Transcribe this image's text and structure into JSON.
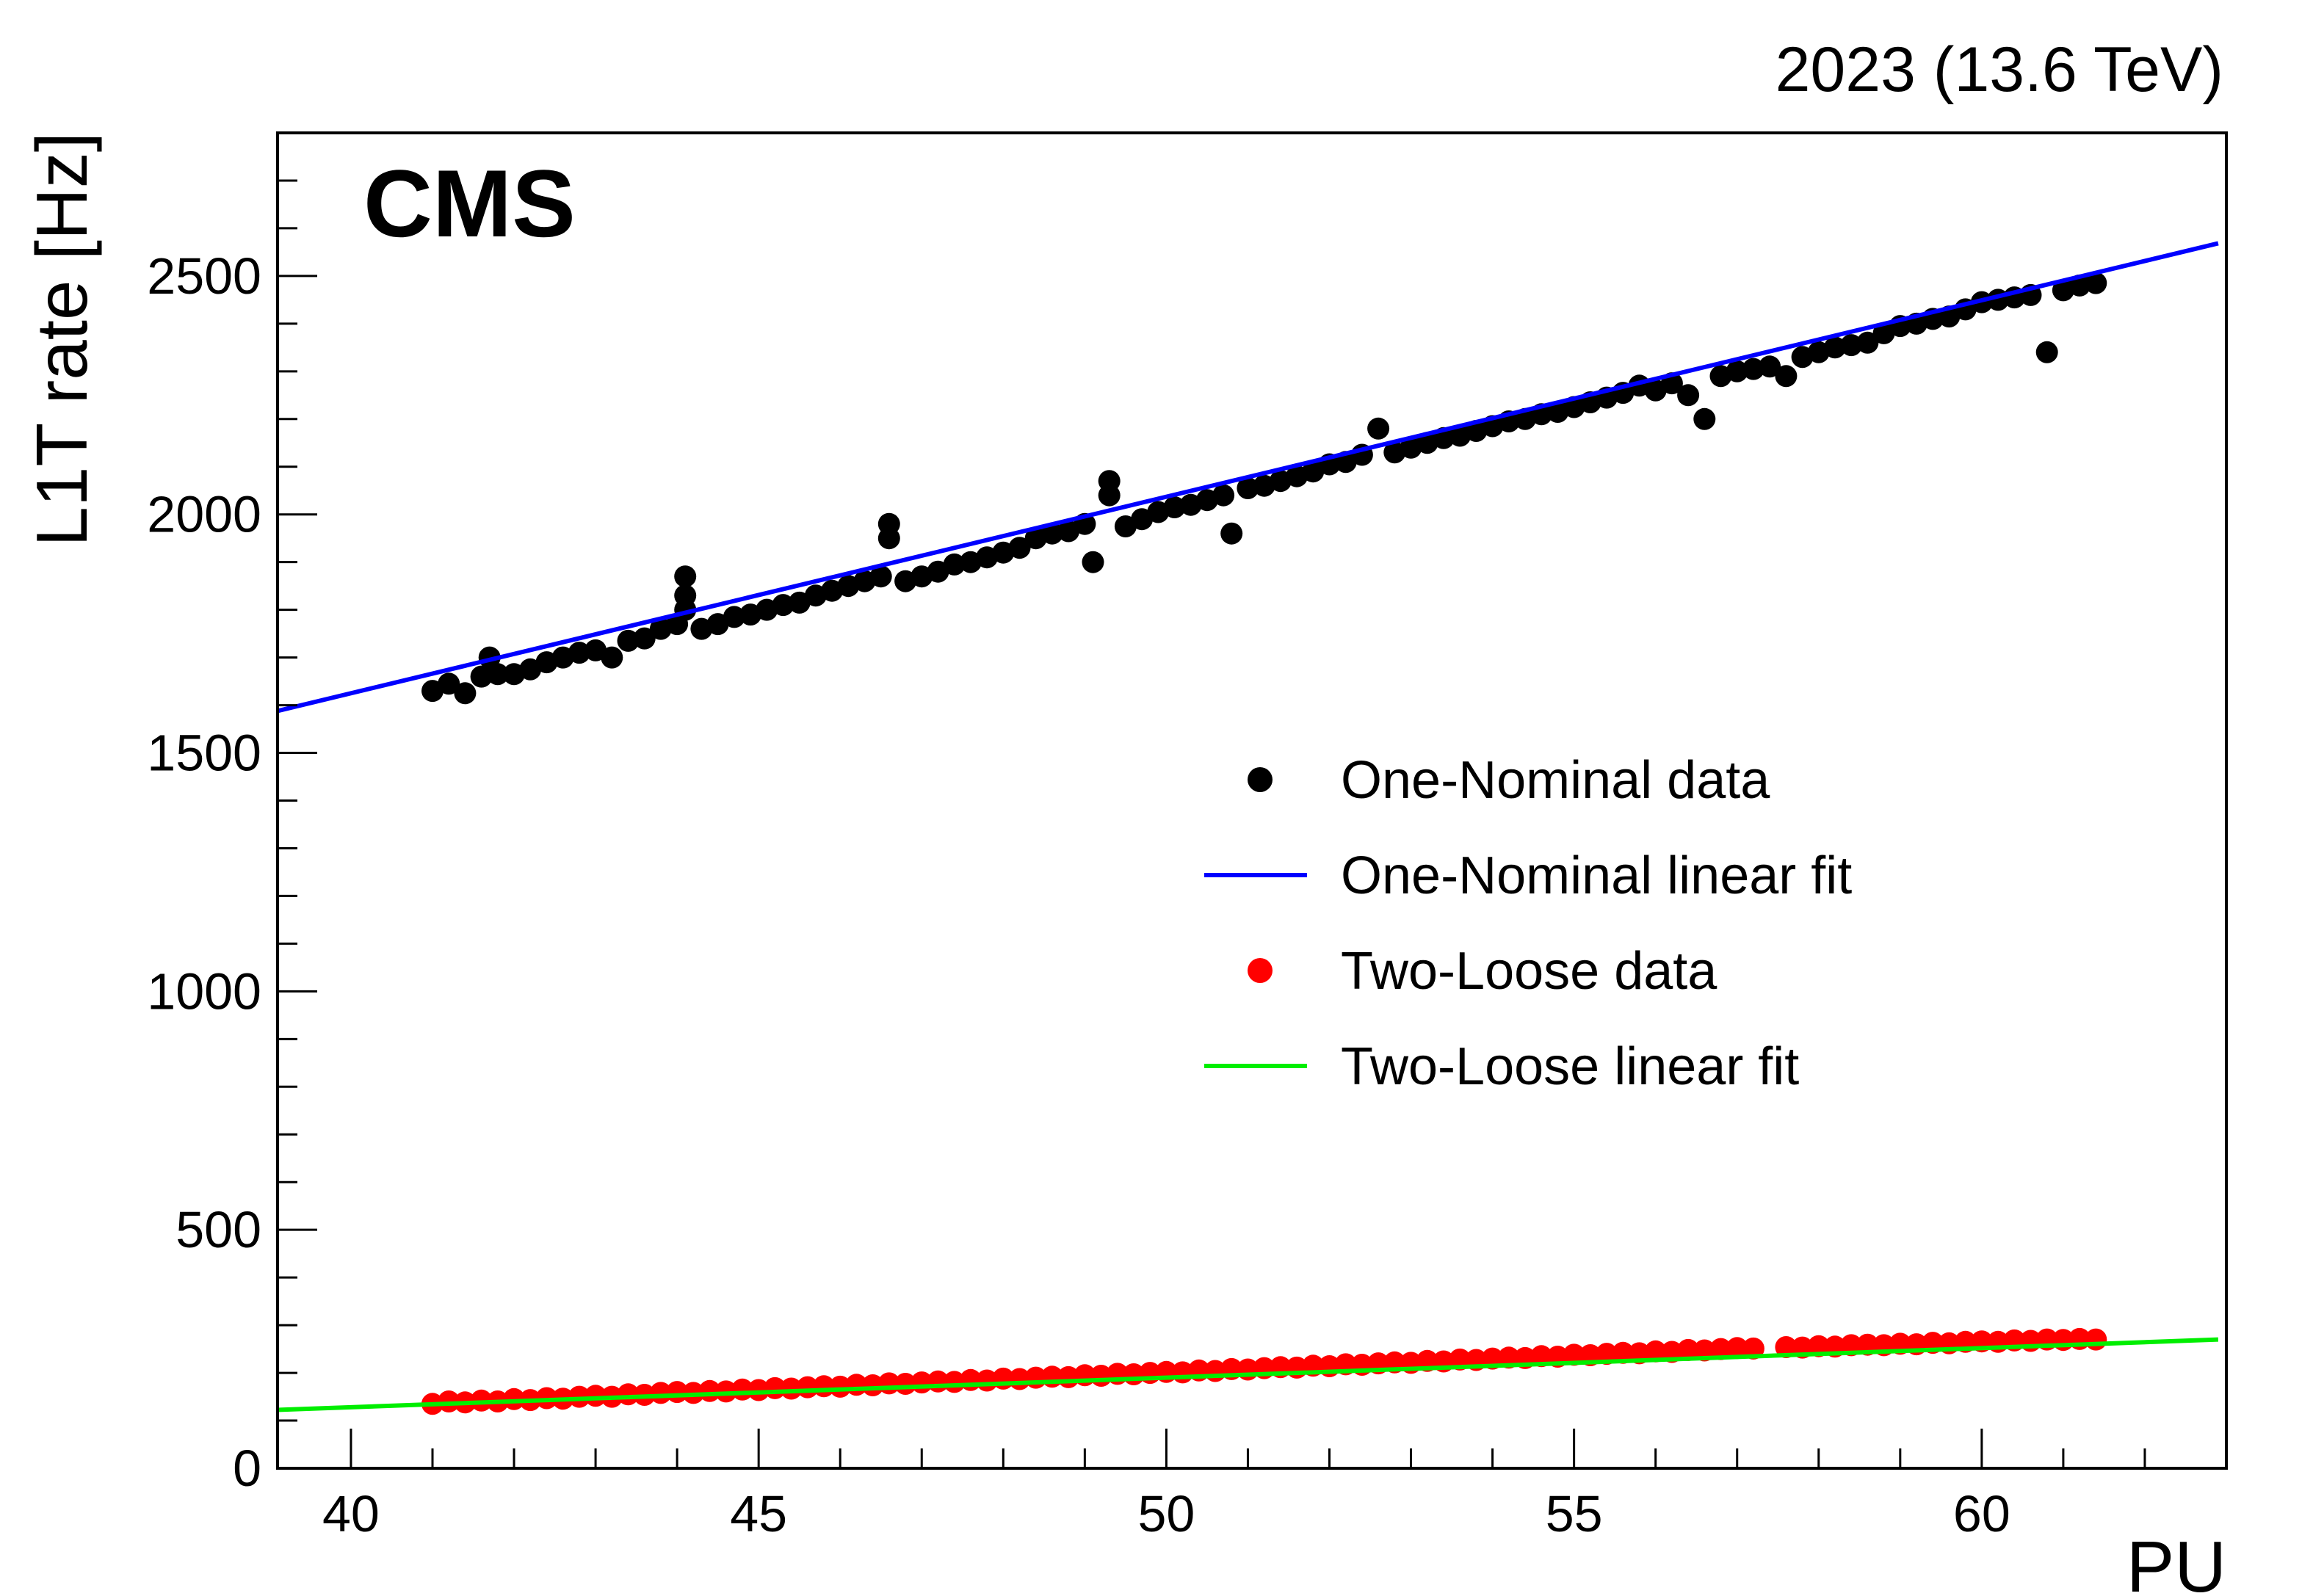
{
  "header": {
    "experiment": "CMS",
    "energy_label": "2023 (13.6 TeV)"
  },
  "chart_data": {
    "type": "scatter",
    "title": "",
    "xlabel": "PU",
    "ylabel": "L1T rate [Hz]",
    "xlim": [
      39.1,
      63.0
    ],
    "ylim": [
      0,
      2800
    ],
    "x_ticks": [
      40,
      45,
      50,
      55,
      60
    ],
    "y_ticks": [
      0,
      500,
      1000,
      1500,
      2000,
      2500
    ],
    "legend_position": "center-right",
    "series": [
      {
        "name": "One-Nominal data",
        "kind": "points",
        "color": "#000000",
        "points": [
          [
            41.0,
            1630
          ],
          [
            41.2,
            1645
          ],
          [
            41.4,
            1625
          ],
          [
            41.6,
            1660
          ],
          [
            41.7,
            1700
          ],
          [
            41.8,
            1665
          ],
          [
            42.0,
            1665
          ],
          [
            42.2,
            1675
          ],
          [
            42.4,
            1690
          ],
          [
            42.6,
            1700
          ],
          [
            42.8,
            1710
          ],
          [
            43.0,
            1715
          ],
          [
            43.2,
            1700
          ],
          [
            43.4,
            1735
          ],
          [
            43.6,
            1740
          ],
          [
            43.8,
            1760
          ],
          [
            44.0,
            1770
          ],
          [
            44.1,
            1800
          ],
          [
            44.1,
            1830
          ],
          [
            44.1,
            1870
          ],
          [
            44.3,
            1760
          ],
          [
            44.5,
            1770
          ],
          [
            44.7,
            1785
          ],
          [
            44.9,
            1790
          ],
          [
            45.1,
            1800
          ],
          [
            45.3,
            1810
          ],
          [
            45.5,
            1815
          ],
          [
            45.7,
            1830
          ],
          [
            45.9,
            1840
          ],
          [
            46.1,
            1850
          ],
          [
            46.3,
            1860
          ],
          [
            46.5,
            1870
          ],
          [
            46.6,
            1950
          ],
          [
            46.6,
            1980
          ],
          [
            46.8,
            1860
          ],
          [
            47.0,
            1870
          ],
          [
            47.2,
            1880
          ],
          [
            47.4,
            1895
          ],
          [
            47.6,
            1900
          ],
          [
            47.8,
            1910
          ],
          [
            48.0,
            1920
          ],
          [
            48.2,
            1930
          ],
          [
            48.4,
            1950
          ],
          [
            48.6,
            1960
          ],
          [
            48.8,
            1965
          ],
          [
            49.0,
            1980
          ],
          [
            49.1,
            1900
          ],
          [
            49.3,
            2040
          ],
          [
            49.3,
            2070
          ],
          [
            49.5,
            1975
          ],
          [
            49.7,
            1990
          ],
          [
            49.9,
            2005
          ],
          [
            50.1,
            2015
          ],
          [
            50.3,
            2020
          ],
          [
            50.5,
            2030
          ],
          [
            50.7,
            2040
          ],
          [
            50.8,
            1960
          ],
          [
            51.0,
            2055
          ],
          [
            51.2,
            2060
          ],
          [
            51.4,
            2070
          ],
          [
            51.6,
            2080
          ],
          [
            51.8,
            2090
          ],
          [
            52.0,
            2105
          ],
          [
            52.2,
            2110
          ],
          [
            52.4,
            2125
          ],
          [
            52.6,
            2180
          ],
          [
            52.8,
            2130
          ],
          [
            53.0,
            2140
          ],
          [
            53.2,
            2150
          ],
          [
            53.4,
            2160
          ],
          [
            53.6,
            2165
          ],
          [
            53.8,
            2175
          ],
          [
            54.0,
            2185
          ],
          [
            54.2,
            2195
          ],
          [
            54.4,
            2200
          ],
          [
            54.6,
            2210
          ],
          [
            54.8,
            2215
          ],
          [
            55.0,
            2225
          ],
          [
            55.2,
            2235
          ],
          [
            55.4,
            2245
          ],
          [
            55.6,
            2255
          ],
          [
            55.8,
            2270
          ],
          [
            56.0,
            2260
          ],
          [
            56.2,
            2275
          ],
          [
            56.4,
            2250
          ],
          [
            56.6,
            2200
          ],
          [
            56.8,
            2290
          ],
          [
            57.0,
            2300
          ],
          [
            57.2,
            2305
          ],
          [
            57.4,
            2310
          ],
          [
            57.6,
            2290
          ],
          [
            57.8,
            2330
          ],
          [
            58.0,
            2340
          ],
          [
            58.2,
            2350
          ],
          [
            58.4,
            2355
          ],
          [
            58.6,
            2360
          ],
          [
            58.8,
            2380
          ],
          [
            59.0,
            2395
          ],
          [
            59.2,
            2400
          ],
          [
            59.4,
            2410
          ],
          [
            59.6,
            2415
          ],
          [
            59.8,
            2430
          ],
          [
            60.0,
            2445
          ],
          [
            60.2,
            2450
          ],
          [
            60.4,
            2455
          ],
          [
            60.6,
            2460
          ],
          [
            60.8,
            2340
          ],
          [
            61.0,
            2470
          ],
          [
            61.2,
            2480
          ],
          [
            61.4,
            2485
          ]
        ]
      },
      {
        "name": "One-Nominal linear fit",
        "kind": "line",
        "color": "#0000ff",
        "slope": 41.2,
        "intercept": -23,
        "x_range": [
          39.1,
          62.9
        ]
      },
      {
        "name": "Two-Loose data",
        "kind": "points",
        "color": "#ff0000",
        "points": [
          [
            41.0,
            135
          ],
          [
            41.2,
            140
          ],
          [
            41.4,
            138
          ],
          [
            41.6,
            142
          ],
          [
            41.8,
            140
          ],
          [
            42.0,
            145
          ],
          [
            42.2,
            143
          ],
          [
            42.4,
            147
          ],
          [
            42.6,
            146
          ],
          [
            42.8,
            150
          ],
          [
            43.0,
            152
          ],
          [
            43.2,
            150
          ],
          [
            43.4,
            155
          ],
          [
            43.6,
            154
          ],
          [
            43.8,
            158
          ],
          [
            44.0,
            160
          ],
          [
            44.2,
            158
          ],
          [
            44.4,
            162
          ],
          [
            44.6,
            161
          ],
          [
            44.8,
            165
          ],
          [
            45.0,
            164
          ],
          [
            45.2,
            168
          ],
          [
            45.4,
            167
          ],
          [
            45.6,
            170
          ],
          [
            45.8,
            172
          ],
          [
            46.0,
            171
          ],
          [
            46.2,
            175
          ],
          [
            46.4,
            174
          ],
          [
            46.6,
            178
          ],
          [
            46.8,
            177
          ],
          [
            47.0,
            180
          ],
          [
            47.2,
            182
          ],
          [
            47.4,
            181
          ],
          [
            47.6,
            185
          ],
          [
            47.8,
            184
          ],
          [
            48.0,
            188
          ],
          [
            48.2,
            187
          ],
          [
            48.4,
            190
          ],
          [
            48.6,
            192
          ],
          [
            48.8,
            191
          ],
          [
            49.0,
            195
          ],
          [
            49.2,
            194
          ],
          [
            49.4,
            198
          ],
          [
            49.6,
            197
          ],
          [
            49.8,
            200
          ],
          [
            50.0,
            202
          ],
          [
            50.2,
            201
          ],
          [
            50.4,
            205
          ],
          [
            50.6,
            204
          ],
          [
            50.8,
            208
          ],
          [
            51.0,
            207
          ],
          [
            51.2,
            210
          ],
          [
            51.4,
            212
          ],
          [
            51.6,
            211
          ],
          [
            51.8,
            215
          ],
          [
            52.0,
            214
          ],
          [
            52.2,
            218
          ],
          [
            52.4,
            217
          ],
          [
            52.6,
            220
          ],
          [
            52.8,
            222
          ],
          [
            53.0,
            221
          ],
          [
            53.2,
            225
          ],
          [
            53.4,
            224
          ],
          [
            53.6,
            228
          ],
          [
            53.8,
            227
          ],
          [
            54.0,
            230
          ],
          [
            54.2,
            232
          ],
          [
            54.4,
            231
          ],
          [
            54.6,
            235
          ],
          [
            54.8,
            234
          ],
          [
            55.0,
            238
          ],
          [
            55.2,
            237
          ],
          [
            55.4,
            240
          ],
          [
            55.6,
            242
          ],
          [
            55.8,
            241
          ],
          [
            56.0,
            245
          ],
          [
            56.2,
            244
          ],
          [
            56.4,
            248
          ],
          [
            56.6,
            247
          ],
          [
            56.8,
            250
          ],
          [
            57.0,
            252
          ],
          [
            57.2,
            251
          ],
          [
            57.6,
            254
          ],
          [
            57.8,
            253
          ],
          [
            58.0,
            256
          ],
          [
            58.2,
            255
          ],
          [
            58.4,
            258
          ],
          [
            58.6,
            259
          ],
          [
            58.8,
            258
          ],
          [
            59.0,
            261
          ],
          [
            59.2,
            260
          ],
          [
            59.4,
            263
          ],
          [
            59.6,
            262
          ],
          [
            59.8,
            265
          ],
          [
            60.0,
            266
          ],
          [
            60.2,
            265
          ],
          [
            60.4,
            268
          ],
          [
            60.6,
            267
          ],
          [
            60.8,
            270
          ],
          [
            61.0,
            269
          ],
          [
            61.2,
            271
          ],
          [
            61.4,
            270
          ]
        ]
      },
      {
        "name": "Two-Loose linear fit",
        "kind": "line",
        "color": "#00ee00",
        "slope": 6.2,
        "intercept": -120,
        "x_range": [
          39.1,
          62.9
        ]
      }
    ]
  }
}
